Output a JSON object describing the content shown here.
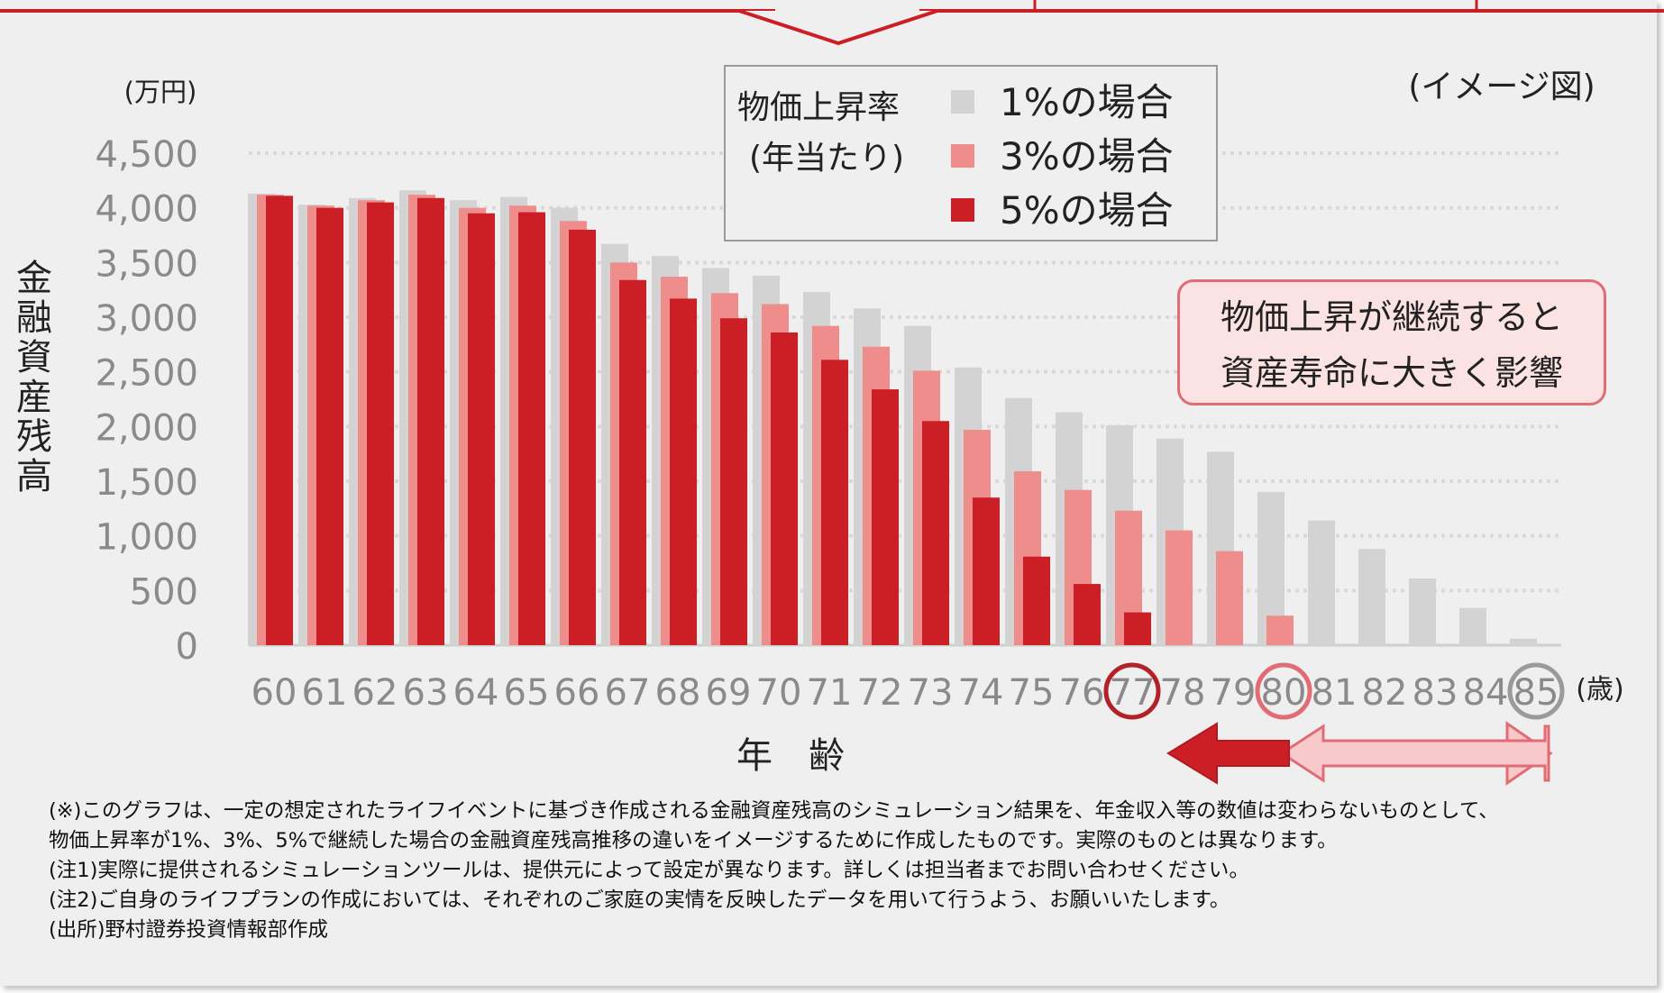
{
  "chart_data": {
    "type": "bar",
    "y_unit": "(万円)",
    "image_note": "(イメージ図)",
    "ylabel": "金融資産残高",
    "xlabel": "年　齢",
    "x_unit": "(歳)",
    "ylim": [
      0,
      4500
    ],
    "yticks": [
      0,
      500,
      1000,
      1500,
      2000,
      2500,
      3000,
      3500,
      4000,
      4500
    ],
    "ytick_labels": [
      "0",
      "500",
      "1,000",
      "1,500",
      "2,000",
      "2,500",
      "3,000",
      "3,500",
      "4,000",
      "4,500"
    ],
    "categories": [
      "60",
      "61",
      "62",
      "63",
      "64",
      "65",
      "66",
      "67",
      "68",
      "69",
      "70",
      "71",
      "72",
      "73",
      "74",
      "75",
      "76",
      "77",
      "78",
      "79",
      "80",
      "81",
      "82",
      "83",
      "84",
      "85"
    ],
    "grid": true,
    "legend_title": [
      "物価上昇率",
      "(年当たり)"
    ],
    "series": [
      {
        "name": "1%の場合",
        "color": "#d3d3d3",
        "values": [
          4130,
          4030,
          4090,
          4160,
          4070,
          4100,
          4000,
          3670,
          3560,
          3450,
          3380,
          3230,
          3080,
          2920,
          2540,
          2260,
          2130,
          2010,
          1890,
          1770,
          1400,
          1140,
          880,
          610,
          340,
          60
        ]
      },
      {
        "name": "3%の場合",
        "color": "#ef8c8c",
        "values": [
          4120,
          4020,
          4070,
          4120,
          4000,
          4020,
          3880,
          3500,
          3370,
          3220,
          3120,
          2920,
          2730,
          2510,
          1970,
          1590,
          1420,
          1230,
          1050,
          860,
          270,
          0,
          0,
          0,
          0,
          0
        ]
      },
      {
        "name": "5%の場合",
        "color": "#cc1f25",
        "values": [
          4110,
          4000,
          4050,
          4090,
          3950,
          3960,
          3800,
          3340,
          3170,
          2990,
          2860,
          2610,
          2340,
          2050,
          1350,
          810,
          560,
          300,
          0,
          0,
          0,
          0,
          0,
          0,
          0,
          0
        ]
      }
    ],
    "highlighted_ages": [
      {
        "age": "77",
        "color": "#b22028"
      },
      {
        "age": "80",
        "color": "#e06c75"
      },
      {
        "age": "85",
        "color": "#9a9a9a"
      }
    ]
  },
  "callout": {
    "lines": [
      "物価上昇が継続すると",
      "資産寿命に大きく影響"
    ]
  },
  "notes": [
    "(※)このグラフは、一定の想定されたライフイベントに基づき作成される金融資産残高のシミュレーション結果を、年金収入等の数値は変わらないものとして、",
    "物価上昇率が1%、3%、5%で継続した場合の金融資産残高推移の違いをイメージするために作成したものです。実際のものとは異なります。",
    "(注1)実際に提供されるシミュレーションツールは、提供元によって設定が異なります。詳しくは担当者までお問い合わせください。",
    "(注2)ご自身のライフプランの作成においては、それぞれのご家庭の実情を反映したデータを用いて行うよう、お願いいたします。",
    "(出所)野村證券投資情報部作成"
  ]
}
